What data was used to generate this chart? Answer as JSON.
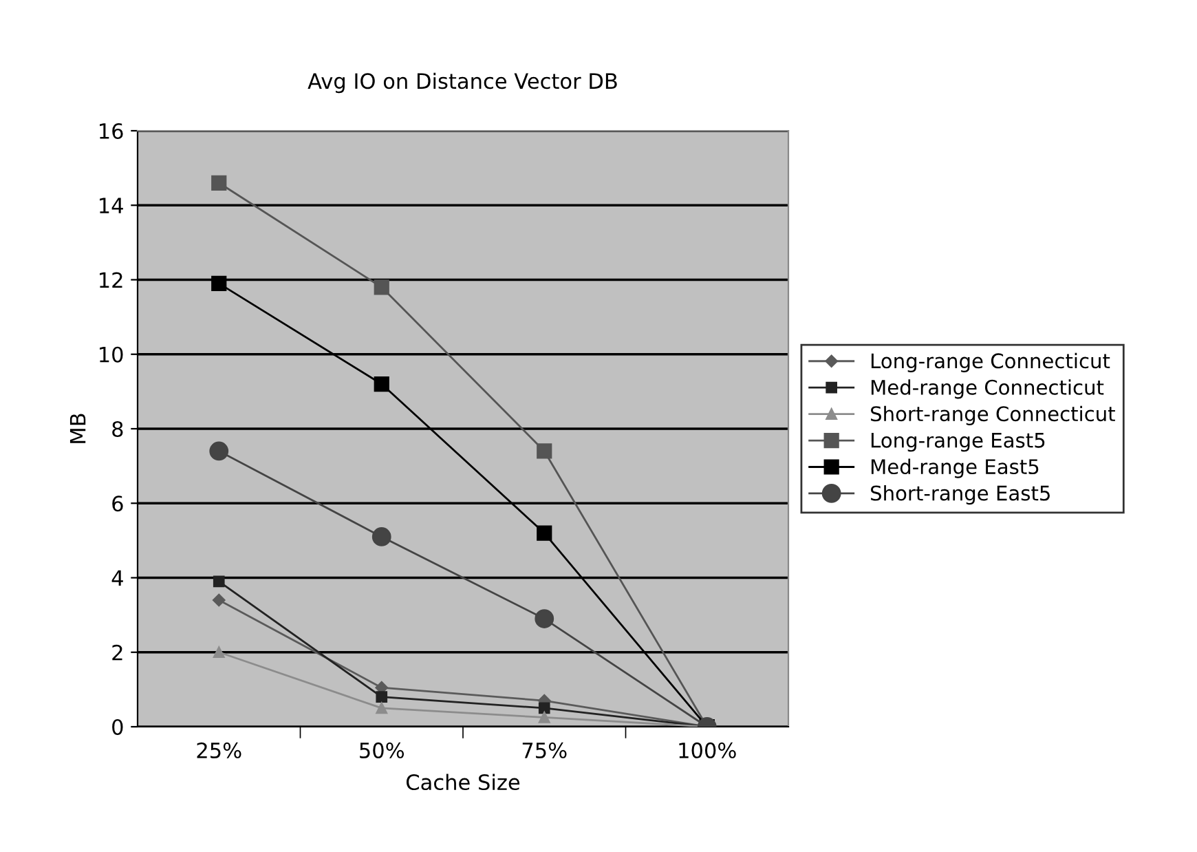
{
  "chart_data": {
    "type": "line",
    "title": "Avg IO on Distance Vector DB",
    "xlabel": "Cache Size",
    "ylabel": "MB",
    "categories": [
      "25%",
      "50%",
      "75%",
      "100%"
    ],
    "series": [
      {
        "name": "Long-range Connecticut",
        "color": "#5a5a5a",
        "marker": "diamond",
        "values": [
          3.4,
          1.05,
          0.7,
          0
        ]
      },
      {
        "name": "Med-range Connecticut",
        "color": "#222222",
        "marker": "square",
        "values": [
          3.9,
          0.8,
          0.5,
          0
        ]
      },
      {
        "name": "Short-range Connecticut",
        "color": "#8c8c8c",
        "marker": "triangle",
        "values": [
          2.0,
          0.5,
          0.25,
          0
        ]
      },
      {
        "name": "Long-range East5",
        "color": "#555555",
        "marker": "square",
        "values": [
          14.6,
          11.8,
          7.4,
          0
        ]
      },
      {
        "name": "Med-range East5",
        "color": "#000000",
        "marker": "square",
        "values": [
          11.9,
          9.2,
          5.2,
          0
        ]
      },
      {
        "name": "Short-range East5",
        "color": "#444444",
        "marker": "circle",
        "values": [
          7.4,
          5.1,
          2.9,
          0
        ]
      }
    ],
    "ylim": [
      0,
      16
    ],
    "yticks": [
      0,
      2,
      4,
      6,
      8,
      10,
      12,
      14,
      16
    ],
    "grid": "y",
    "legend": "right"
  }
}
